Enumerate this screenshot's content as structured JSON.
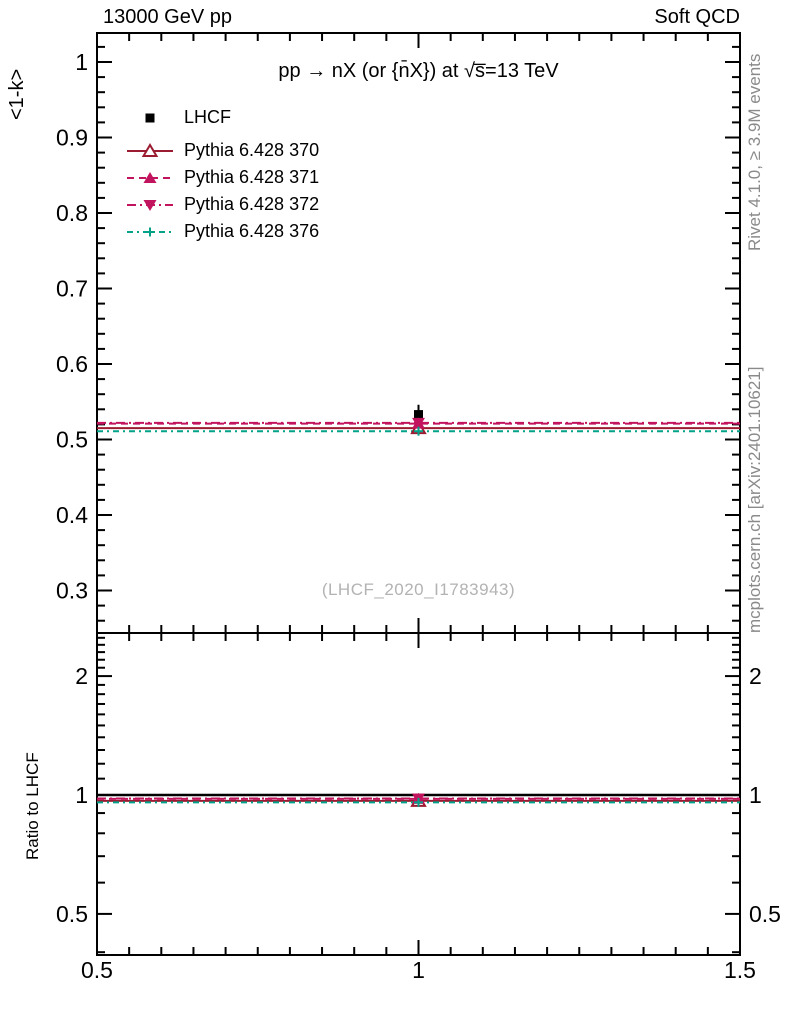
{
  "header": {
    "left": "13000 GeV pp",
    "right": "Soft QCD"
  },
  "main_panel": {
    "title": "pp →  nX (or {n̄X}) at √s̅=13 TeV",
    "ylabel": "<1-k>",
    "watermark": "(LHCF_2020_I1783943)"
  },
  "ratio_panel": {
    "ylabel": "Ratio to LHCF"
  },
  "right_margin": {
    "top": "Rivet 4.1.0, ≥ 3.9M events",
    "bottom": "mcplots.cern.ch [arXiv:2401.10621]"
  },
  "chart_data": {
    "type": "line",
    "title": "pp →  nX (or {n̄X}) at √s̅=13 TeV",
    "xlabel": "",
    "legend_position": "top-left",
    "grid": false,
    "x": {
      "lim": [
        0.5,
        1.5
      ],
      "major_ticks": [
        0.5,
        1,
        1.5
      ],
      "minor_step": 0.05,
      "scale": "linear"
    },
    "main_y": {
      "label": "<1-k>",
      "lim": [
        0.244,
        1.038
      ],
      "major_ticks": [
        0.3,
        0.4,
        0.5,
        0.6,
        0.7,
        0.8,
        0.9,
        1
      ],
      "minor_step": 0.02,
      "scale": "linear"
    },
    "ratio_y": {
      "label": "Ratio to LHCF",
      "lim": [
        0.393,
        2.57
      ],
      "major_ticks": [
        0.5,
        1,
        2
      ],
      "minor_ticks": [
        0.4,
        0.6,
        0.7,
        0.8,
        0.9,
        1.1,
        1.2,
        1.3,
        1.4,
        1.5,
        1.6,
        1.7,
        1.8,
        1.9,
        2.1,
        2.2,
        2.3,
        2.4,
        2.5
      ],
      "scale": "log"
    },
    "reference": {
      "name": "LHCF",
      "color": "#000000",
      "marker": "square",
      "points": [
        {
          "x": 1,
          "y": 0.533,
          "yerr": 0.013
        }
      ]
    },
    "series": [
      {
        "name": "Pythia 6.428 370",
        "color": "#9b1b30",
        "dash": "solid",
        "marker": "triangle-open",
        "x": 1,
        "y": 0.515,
        "ratio": 0.966
      },
      {
        "name": "Pythia 6.428 371",
        "color": "#c2145e",
        "dash": "dash",
        "marker": "triangle-up",
        "x": 1,
        "y": 0.521,
        "ratio": 0.978
      },
      {
        "name": "Pythia 6.428 372",
        "color": "#c2145e",
        "dash": "dashdot",
        "marker": "triangle-down",
        "x": 1,
        "y": 0.522,
        "ratio": 0.98
      },
      {
        "name": "Pythia 6.428 376",
        "color": "#00a389",
        "dash": "dashdotdot",
        "marker": "plus",
        "x": 1,
        "y": 0.511,
        "ratio": 0.958
      }
    ]
  }
}
